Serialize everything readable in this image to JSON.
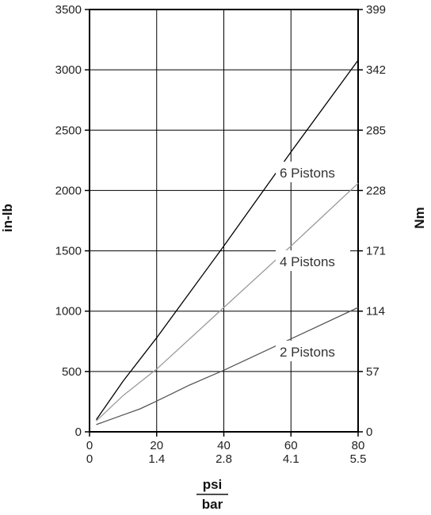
{
  "chart_data": {
    "type": "line",
    "ylabel_left": "in-lb",
    "ylabel_right": "Nm",
    "xlabel_top": "psi",
    "xlabel_bottom": "bar",
    "xlim": [
      0,
      80
    ],
    "ylim": [
      0,
      3500
    ],
    "x_ticks_psi": [
      "0",
      "20",
      "40",
      "60",
      "80"
    ],
    "x_ticks_bar": [
      "0",
      "1.4",
      "2.8",
      "4.1",
      "5.5"
    ],
    "y_ticks_left": [
      "0",
      "500",
      "1000",
      "1500",
      "2000",
      "2500",
      "3000",
      "3500"
    ],
    "y_ticks_right": [
      "0",
      "57",
      "114",
      "171",
      "228",
      "285",
      "342",
      "399"
    ],
    "grid": true,
    "colors": {
      "6 Pistons": "#000000",
      "4 Pistons": "#9a9a9a",
      "2 Pistons": "#555555"
    },
    "series": [
      {
        "name": "6 Pistons",
        "x": [
          2,
          10,
          20,
          40,
          60,
          80
        ],
        "y": [
          100,
          420,
          780,
          1540,
          2320,
          3080
        ]
      },
      {
        "name": "4 Pistons",
        "x": [
          2,
          10,
          20,
          40,
          60,
          80
        ],
        "y": [
          90,
          300,
          520,
          1030,
          1540,
          2060
        ]
      },
      {
        "name": "2 Pistons",
        "x": [
          2,
          5,
          10,
          15,
          20,
          30,
          40,
          60,
          80
        ],
        "y": [
          60,
          90,
          140,
          190,
          255,
          390,
          510,
          770,
          1030
        ]
      }
    ]
  }
}
